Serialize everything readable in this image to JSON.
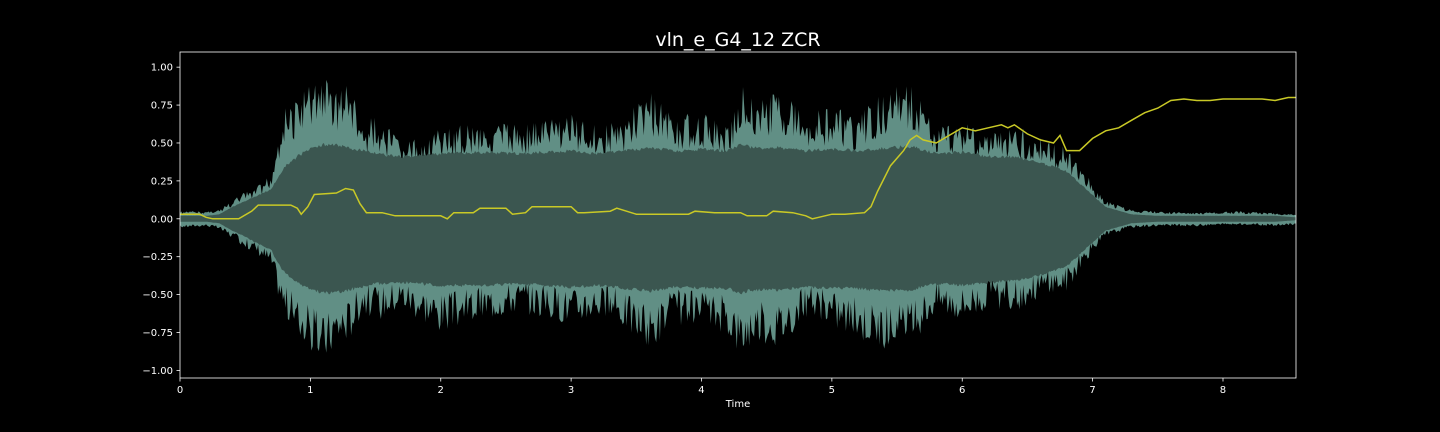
{
  "chart_data": {
    "type": "line",
    "title": "vln_e_G4_12 ZCR",
    "xlabel": "Time",
    "ylabel": "",
    "xlim": [
      0,
      8.56
    ],
    "ylim": [
      -1.05,
      1.1
    ],
    "xticks": [
      0,
      1,
      2,
      3,
      4,
      5,
      6,
      7,
      8
    ],
    "yticks": [
      -1.0,
      -0.75,
      -0.5,
      -0.25,
      0.0,
      0.25,
      0.5,
      0.75,
      1.0
    ],
    "ytick_labels": [
      "−1.00",
      "−0.75",
      "−0.50",
      "−0.25",
      "0.00",
      "0.25",
      "0.50",
      "0.75",
      "1.00"
    ],
    "grid": false,
    "series": [
      {
        "role": "waveform_envelope",
        "color_fill": "#6b9e94",
        "color_body": "#3b5650",
        "x": [
          0.0,
          0.2,
          0.3,
          0.4,
          0.5,
          0.6,
          0.7,
          0.75,
          0.8,
          0.9,
          1.0,
          1.1,
          1.2,
          1.3,
          1.4,
          1.5,
          1.7,
          2.0,
          2.3,
          2.6,
          3.0,
          3.2,
          3.4,
          3.6,
          3.8,
          4.0,
          4.2,
          4.3,
          4.4,
          4.6,
          4.8,
          5.0,
          5.2,
          5.4,
          5.6,
          5.8,
          6.0,
          6.2,
          6.4,
          6.6,
          6.8,
          6.95,
          7.1,
          7.3,
          7.5,
          7.8,
          8.1,
          8.4,
          8.56
        ],
        "upper": [
          0.05,
          0.05,
          0.06,
          0.12,
          0.18,
          0.22,
          0.3,
          0.55,
          0.72,
          0.82,
          0.88,
          0.95,
          0.85,
          0.9,
          0.62,
          0.7,
          0.5,
          0.6,
          0.65,
          0.62,
          0.7,
          0.62,
          0.66,
          0.85,
          0.68,
          0.72,
          0.6,
          0.92,
          0.8,
          0.85,
          0.7,
          0.75,
          0.68,
          0.85,
          0.9,
          0.6,
          0.66,
          0.55,
          0.62,
          0.55,
          0.48,
          0.3,
          0.12,
          0.06,
          0.05,
          0.04,
          0.05,
          0.04,
          0.03
        ],
        "lower": [
          -0.06,
          -0.05,
          -0.07,
          -0.13,
          -0.19,
          -0.24,
          -0.32,
          -0.5,
          -0.65,
          -0.78,
          -0.88,
          -0.96,
          -0.85,
          -0.8,
          -0.62,
          -0.68,
          -0.6,
          -0.75,
          -0.68,
          -0.62,
          -0.7,
          -0.65,
          -0.72,
          -0.88,
          -0.7,
          -0.74,
          -0.76,
          -0.92,
          -0.82,
          -0.84,
          -0.66,
          -0.72,
          -0.8,
          -0.86,
          -0.85,
          -0.62,
          -0.68,
          -0.6,
          -0.62,
          -0.52,
          -0.48,
          -0.28,
          -0.12,
          -0.06,
          -0.05,
          -0.05,
          -0.04,
          -0.05,
          -0.04
        ],
        "body_upper": [
          0.02,
          0.02,
          0.03,
          0.08,
          0.12,
          0.16,
          0.2,
          0.28,
          0.35,
          0.42,
          0.48,
          0.5,
          0.5,
          0.48,
          0.46,
          0.44,
          0.42,
          0.44,
          0.45,
          0.44,
          0.46,
          0.44,
          0.46,
          0.48,
          0.46,
          0.47,
          0.46,
          0.5,
          0.48,
          0.48,
          0.46,
          0.47,
          0.46,
          0.48,
          0.49,
          0.44,
          0.45,
          0.42,
          0.42,
          0.38,
          0.32,
          0.2,
          0.08,
          0.03,
          0.02,
          0.02,
          0.02,
          0.02,
          0.01
        ],
        "body_lower": [
          -0.02,
          -0.02,
          -0.03,
          -0.08,
          -0.12,
          -0.17,
          -0.21,
          -0.3,
          -0.36,
          -0.43,
          -0.48,
          -0.5,
          -0.5,
          -0.48,
          -0.46,
          -0.44,
          -0.43,
          -0.45,
          -0.45,
          -0.44,
          -0.46,
          -0.45,
          -0.47,
          -0.49,
          -0.46,
          -0.47,
          -0.47,
          -0.5,
          -0.48,
          -0.48,
          -0.46,
          -0.47,
          -0.47,
          -0.49,
          -0.48,
          -0.44,
          -0.45,
          -0.43,
          -0.42,
          -0.38,
          -0.32,
          -0.2,
          -0.08,
          -0.03,
          -0.02,
          -0.02,
          -0.02,
          -0.02,
          -0.01
        ]
      },
      {
        "role": "zcr",
        "color": "#c9c926",
        "x": [
          0.0,
          0.15,
          0.2,
          0.25,
          0.45,
          0.55,
          0.6,
          0.85,
          0.9,
          0.93,
          0.98,
          1.03,
          1.2,
          1.27,
          1.33,
          1.38,
          1.43,
          1.55,
          1.65,
          2.0,
          2.05,
          2.1,
          2.25,
          2.3,
          2.5,
          2.55,
          2.65,
          2.7,
          3.0,
          3.05,
          3.1,
          3.3,
          3.35,
          3.5,
          3.6,
          3.9,
          3.95,
          4.1,
          4.3,
          4.35,
          4.5,
          4.55,
          4.7,
          4.8,
          4.85,
          4.9,
          5.0,
          5.1,
          5.25,
          5.3,
          5.35,
          5.45,
          5.55,
          5.6,
          5.65,
          5.7,
          5.8,
          5.9,
          6.0,
          6.1,
          6.2,
          6.3,
          6.35,
          6.4,
          6.5,
          6.6,
          6.7,
          6.75,
          6.8,
          6.9,
          7.0,
          7.1,
          7.2,
          7.3,
          7.4,
          7.5,
          7.6,
          7.7,
          7.8,
          7.9,
          8.0,
          8.1,
          8.2,
          8.3,
          8.4,
          8.5,
          8.56
        ],
        "y": [
          0.03,
          0.03,
          0.01,
          0.0,
          0.0,
          0.05,
          0.09,
          0.09,
          0.07,
          0.03,
          0.08,
          0.16,
          0.17,
          0.2,
          0.19,
          0.1,
          0.04,
          0.04,
          0.02,
          0.02,
          0.0,
          0.04,
          0.04,
          0.07,
          0.07,
          0.03,
          0.04,
          0.08,
          0.08,
          0.04,
          0.04,
          0.05,
          0.07,
          0.03,
          0.03,
          0.03,
          0.05,
          0.04,
          0.04,
          0.02,
          0.02,
          0.05,
          0.04,
          0.02,
          0.0,
          0.01,
          0.03,
          0.03,
          0.04,
          0.08,
          0.18,
          0.35,
          0.45,
          0.52,
          0.55,
          0.52,
          0.5,
          0.55,
          0.6,
          0.58,
          0.6,
          0.62,
          0.6,
          0.62,
          0.56,
          0.52,
          0.5,
          0.55,
          0.45,
          0.45,
          0.53,
          0.58,
          0.6,
          0.65,
          0.7,
          0.73,
          0.78,
          0.79,
          0.78,
          0.78,
          0.79,
          0.79,
          0.79,
          0.79,
          0.78,
          0.8,
          0.8
        ]
      }
    ]
  }
}
